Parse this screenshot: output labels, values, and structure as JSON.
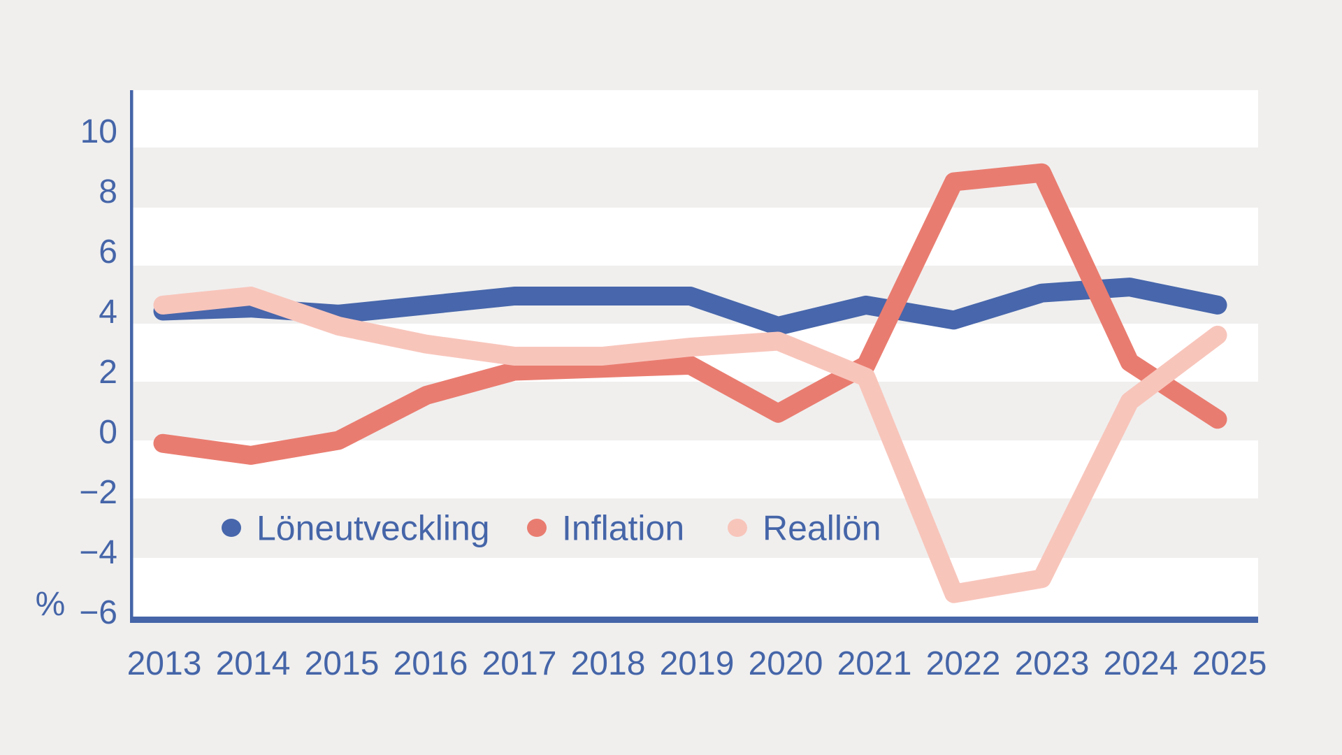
{
  "chart": {
    "percent_label": "%",
    "background_color": "#f0efee",
    "stripe_color": "#ffffff",
    "axis_color": "#4565a8",
    "text_color": "#4565a8"
  },
  "chart_data": {
    "type": "line",
    "title": "",
    "xlabel": "",
    "ylabel": "%",
    "x": [
      2013,
      2014,
      2015,
      2016,
      2017,
      2018,
      2019,
      2020,
      2021,
      2022,
      2023,
      2024,
      2025
    ],
    "x_labels": [
      "2013",
      "2014",
      "2015",
      "2016",
      "2017",
      "2018",
      "2019",
      "2020",
      "2021",
      "2022",
      "2023",
      "2024",
      "2025"
    ],
    "y_tick_values": [
      10,
      8,
      6,
      4,
      2,
      0,
      -2,
      -4,
      -6
    ],
    "y_tick_labels": [
      "10",
      "8",
      "6",
      "4",
      "2",
      "0",
      "−2",
      "−4",
      "−6"
    ],
    "ylim": [
      -6.6,
      11.3
    ],
    "grid": "horizontal-striped-bands",
    "legend_position": "inside-bottom-left",
    "series": [
      {
        "name": "Löneutveckling",
        "color": "#4766ab",
        "values": [
          4.0,
          4.1,
          3.9,
          4.2,
          4.5,
          4.5,
          4.5,
          3.5,
          4.2,
          3.7,
          4.6,
          4.8,
          4.2
        ]
      },
      {
        "name": "Inflation",
        "color": "#e97c70",
        "values": [
          -0.4,
          -0.8,
          -0.3,
          1.2,
          2.0,
          2.1,
          2.2,
          0.6,
          2.2,
          8.3,
          8.6,
          2.3,
          0.4
        ]
      },
      {
        "name": "Reallön",
        "color": "#f8c5bb",
        "values": [
          4.2,
          4.5,
          3.5,
          2.9,
          2.5,
          2.5,
          2.8,
          3.0,
          1.8,
          -5.4,
          -4.9,
          1.0,
          3.2
        ]
      }
    ]
  }
}
